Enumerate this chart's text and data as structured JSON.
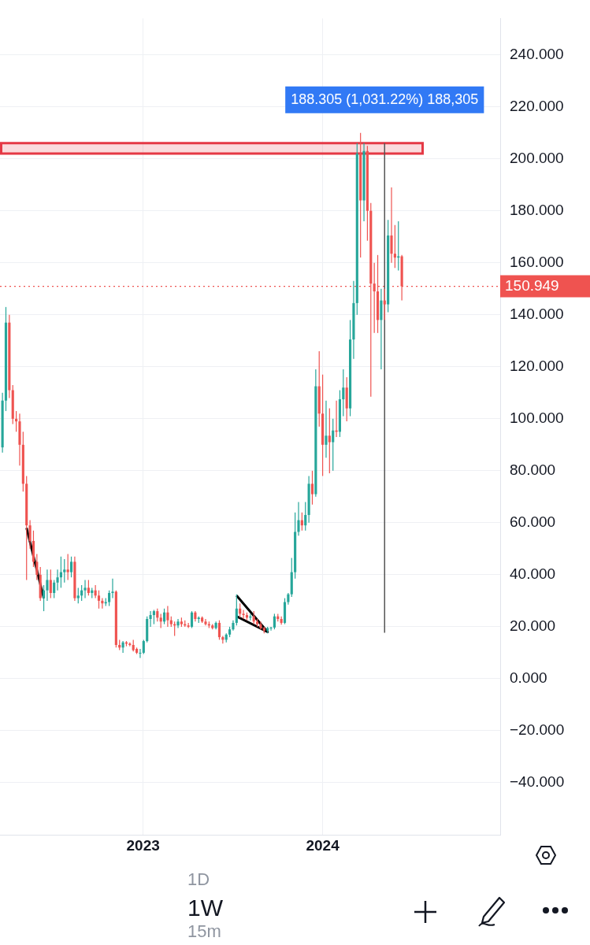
{
  "chart_data": {
    "type": "candlestick",
    "x": [
      "2022-03-21",
      "2022-03-28",
      "2022-04-04",
      "2022-04-11",
      "2022-04-18",
      "2022-04-25",
      "2022-05-02",
      "2022-05-09",
      "2022-05-16",
      "2022-05-23",
      "2022-05-30",
      "2022-06-06",
      "2022-06-13",
      "2022-06-20",
      "2022-06-27",
      "2022-07-04",
      "2022-07-11",
      "2022-07-18",
      "2022-07-25",
      "2022-08-01",
      "2022-08-08",
      "2022-08-15",
      "2022-08-22",
      "2022-08-29",
      "2022-09-05",
      "2022-09-12",
      "2022-09-19",
      "2022-09-26",
      "2022-10-03",
      "2022-10-10",
      "2022-10-17",
      "2022-10-24",
      "2022-10-31",
      "2022-11-07",
      "2022-11-14",
      "2022-11-21",
      "2022-11-28",
      "2022-12-05",
      "2022-12-12",
      "2022-12-19",
      "2022-12-26",
      "2023-01-02",
      "2023-01-09",
      "2023-01-16",
      "2023-01-23",
      "2023-01-30",
      "2023-02-06",
      "2023-02-13",
      "2023-02-20",
      "2023-02-27",
      "2023-03-06",
      "2023-03-13",
      "2023-03-20",
      "2023-03-27",
      "2023-04-03",
      "2023-04-10",
      "2023-04-17",
      "2023-04-24",
      "2023-05-01",
      "2023-05-08",
      "2023-05-15",
      "2023-05-22",
      "2023-05-29",
      "2023-06-05",
      "2023-06-12",
      "2023-06-19",
      "2023-06-26",
      "2023-07-03",
      "2023-07-10",
      "2023-07-17",
      "2023-07-24",
      "2023-07-31",
      "2023-08-07",
      "2023-08-14",
      "2023-08-21",
      "2023-08-28",
      "2023-09-04",
      "2023-09-11",
      "2023-09-18",
      "2023-09-25",
      "2023-10-02",
      "2023-10-09",
      "2023-10-16",
      "2023-10-23",
      "2023-10-30",
      "2023-11-06",
      "2023-11-13",
      "2023-11-20",
      "2023-11-27",
      "2023-12-04",
      "2023-12-11",
      "2023-12-18",
      "2023-12-25",
      "2024-01-01",
      "2024-01-08",
      "2024-01-15",
      "2024-01-22",
      "2024-01-29",
      "2024-02-05",
      "2024-02-12",
      "2024-02-19",
      "2024-02-26",
      "2024-03-04",
      "2024-03-11",
      "2024-03-18",
      "2024-03-25",
      "2024-04-01",
      "2024-04-08",
      "2024-04-15",
      "2024-04-22",
      "2024-04-29",
      "2024-05-06",
      "2024-05-13",
      "2024-05-20",
      "2024-05-27",
      "2024-06-03",
      "2024-06-10"
    ],
    "ohlc": [
      [
        89,
        110,
        87,
        107
      ],
      [
        107,
        143,
        103,
        137
      ],
      [
        137,
        140,
        108,
        111
      ],
      [
        111,
        113,
        98,
        100
      ],
      [
        100,
        103,
        95,
        99
      ],
      [
        99,
        102,
        82,
        90
      ],
      [
        90,
        95,
        72,
        75
      ],
      [
        75,
        78,
        38,
        59
      ],
      [
        59,
        61,
        50,
        53
      ],
      [
        53,
        57,
        43,
        45
      ],
      [
        45,
        48,
        38,
        40
      ],
      [
        40,
        43,
        30,
        31
      ],
      [
        31,
        36,
        26,
        34
      ],
      [
        34,
        42,
        30,
        38
      ],
      [
        38,
        42,
        31,
        33
      ],
      [
        33,
        38,
        31,
        37
      ],
      [
        37,
        42,
        34,
        39
      ],
      [
        39,
        47,
        35,
        41
      ],
      [
        41,
        46,
        37,
        42
      ],
      [
        42,
        48,
        38,
        41
      ],
      [
        41,
        47,
        39,
        45
      ],
      [
        45,
        47,
        30,
        31
      ],
      [
        31,
        35,
        29,
        32
      ],
      [
        32,
        36,
        30,
        34
      ],
      [
        34,
        38,
        31,
        35
      ],
      [
        35,
        38,
        32,
        33
      ],
      [
        33,
        35,
        31,
        34
      ],
      [
        34,
        36,
        31,
        32
      ],
      [
        32,
        34,
        27,
        30
      ],
      [
        30,
        31,
        27,
        29
      ],
      [
        29,
        31,
        28,
        29.5
      ],
      [
        29.5,
        34,
        28,
        33
      ],
      [
        33,
        38.5,
        31,
        33.5
      ],
      [
        33.5,
        34,
        12,
        13
      ],
      [
        13,
        15,
        11,
        12
      ],
      [
        12,
        14.5,
        10,
        14
      ],
      [
        14,
        14.5,
        12.5,
        13.5
      ],
      [
        13.5,
        14,
        12.5,
        13
      ],
      [
        13,
        15,
        10.5,
        11
      ],
      [
        11.5,
        12,
        9.5,
        10
      ],
      [
        10,
        11.5,
        8,
        10
      ],
      [
        10,
        15,
        9.5,
        14.5
      ],
      [
        14.5,
        24,
        14,
        23
      ],
      [
        23,
        26,
        20,
        24.5
      ],
      [
        24.5,
        26.5,
        21,
        26
      ],
      [
        26,
        27,
        22,
        23.5
      ],
      [
        23.5,
        25,
        19.5,
        22
      ],
      [
        22,
        27,
        21,
        25.5
      ],
      [
        25.5,
        28,
        20,
        22.5
      ],
      [
        22.5,
        24,
        20,
        21
      ],
      [
        21,
        22,
        16.5,
        20.5
      ],
      [
        20.5,
        23,
        19.5,
        22
      ],
      [
        22,
        23.5,
        20,
        21
      ],
      [
        21,
        22.5,
        20,
        20.5
      ],
      [
        20.5,
        21.5,
        19.5,
        20
      ],
      [
        20,
        26,
        19.5,
        25.5
      ],
      [
        25.5,
        26,
        22,
        23
      ],
      [
        23,
        24,
        21.5,
        23.5
      ],
      [
        23.5,
        24,
        21.5,
        22
      ],
      [
        22,
        23,
        20.5,
        21
      ],
      [
        21,
        22,
        19.5,
        20.5
      ],
      [
        20.5,
        21,
        19,
        19.5
      ],
      [
        19.5,
        22,
        19,
        21.5
      ],
      [
        21.5,
        22.5,
        15,
        16
      ],
      [
        16,
        16.5,
        13.5,
        15
      ],
      [
        15,
        17.5,
        14,
        17
      ],
      [
        17,
        20,
        16,
        19
      ],
      [
        19,
        22.5,
        18.5,
        21.5
      ],
      [
        21.5,
        32.5,
        20.5,
        27
      ],
      [
        27,
        29,
        23.5,
        25
      ],
      [
        25,
        26.5,
        23,
        24.5
      ],
      [
        24.5,
        25.5,
        22.5,
        23.5
      ],
      [
        23.5,
        25,
        22.5,
        24
      ],
      [
        24,
        26,
        21,
        22
      ],
      [
        22,
        23,
        20,
        21
      ],
      [
        21,
        22,
        19,
        19.5
      ],
      [
        19.5,
        20,
        17.5,
        18.5
      ],
      [
        18.5,
        20,
        17.5,
        19.5
      ],
      [
        19.5,
        20,
        18.5,
        19.7
      ],
      [
        19.7,
        25,
        19,
        24
      ],
      [
        24,
        25,
        22,
        23
      ],
      [
        23,
        24,
        20.8,
        21.5
      ],
      [
        21.5,
        31,
        21,
        29.5
      ],
      [
        29.5,
        33,
        28.5,
        32.5
      ],
      [
        32.5,
        46.5,
        31.5,
        41
      ],
      [
        41,
        64,
        38.5,
        56.5
      ],
      [
        56.5,
        68,
        55,
        61
      ],
      [
        61,
        64,
        57,
        59
      ],
      [
        59,
        68,
        57,
        63
      ],
      [
        63,
        78,
        60,
        75
      ],
      [
        75,
        80,
        67,
        71
      ],
      [
        71,
        119,
        70,
        112.5
      ],
      [
        112.5,
        126,
        97,
        102
      ],
      [
        102,
        117,
        78,
        90
      ],
      [
        90,
        107,
        85,
        93.5
      ],
      [
        93.5,
        104,
        79,
        91
      ],
      [
        91,
        100,
        80,
        95.5
      ],
      [
        95.5,
        107,
        93,
        95
      ],
      [
        95,
        111,
        93,
        107.5
      ],
      [
        107.5,
        119,
        101,
        112
      ],
      [
        112,
        116,
        99,
        104
      ],
      [
        104,
        138,
        101,
        130.5
      ],
      [
        130.5,
        153,
        123,
        144.5
      ],
      [
        144.5,
        206,
        140,
        202
      ],
      [
        202,
        210,
        162,
        184
      ],
      [
        184,
        206,
        176,
        203
      ],
      [
        203,
        205,
        168.5,
        180
      ],
      [
        180,
        183,
        108.5,
        152
      ],
      [
        152,
        160,
        133,
        149
      ],
      [
        149,
        163,
        133,
        138
      ],
      [
        138,
        150,
        119,
        145.5
      ],
      [
        145.5,
        150,
        138,
        144
      ],
      [
        144,
        176.5,
        141,
        170.5
      ],
      [
        170.5,
        189,
        160,
        163.5
      ],
      [
        163.5,
        174.5,
        158,
        162
      ],
      [
        162,
        176,
        157,
        162.5
      ],
      [
        162.5,
        163,
        145.5,
        150.949
      ]
    ],
    "xlim": [
      "2022-03-16",
      "2024-12-27"
    ],
    "xticks": [
      {
        "value": "2023-01-01",
        "label": "2023"
      },
      {
        "value": "2024-01-01",
        "label": "2024"
      }
    ],
    "ylim": [
      -60,
      254
    ],
    "yticks": [
      {
        "value": -40,
        "label": "−40.000"
      },
      {
        "value": -20,
        "label": "−20.000"
      },
      {
        "value": 0,
        "label": "0.000"
      },
      {
        "value": 20,
        "label": "20.000"
      },
      {
        "value": 40,
        "label": "40.000"
      },
      {
        "value": 60,
        "label": "60.000"
      },
      {
        "value": 80,
        "label": "80.000"
      },
      {
        "value": 100,
        "label": "100.000"
      },
      {
        "value": 120,
        "label": "120.000"
      },
      {
        "value": 140,
        "label": "140.000"
      },
      {
        "value": 160,
        "label": "160.000"
      },
      {
        "value": 180,
        "label": "180.000"
      },
      {
        "value": 200,
        "label": "200.000"
      },
      {
        "value": 220,
        "label": "220.000"
      },
      {
        "value": 240,
        "label": "240.000"
      }
    ],
    "grid": true,
    "series": [
      {
        "type": "line",
        "color": "#000000",
        "x": [
          "2022-05-09",
          "2022-06-13"
        ],
        "values": [
          58,
          31
        ]
      },
      {
        "type": "line",
        "color": "#000000",
        "x": [
          "2023-07-10",
          "2023-09-11",
          "2023-07-10"
        ],
        "values": [
          32,
          18,
          24
        ]
      },
      {
        "type": "line",
        "color": "#555555",
        "x": [
          "2024-05-06",
          "2024-05-06"
        ],
        "values": [
          17.7,
          206
        ]
      }
    ],
    "ref_lines": [
      {
        "axis": "y",
        "value": 150.949,
        "label": "150.949",
        "color": "#ef5350",
        "line_style": "dotted"
      }
    ],
    "bands": [
      {
        "axis": "y",
        "from": 202,
        "to": 206,
        "color": "#e53945"
      }
    ],
    "annotations": [
      {
        "text": "188.305 (1,031.22%) 188,305",
        "x": "2024-05-06",
        "y": 206
      },
      "1D",
      "1W",
      "15m"
    ]
  }
}
